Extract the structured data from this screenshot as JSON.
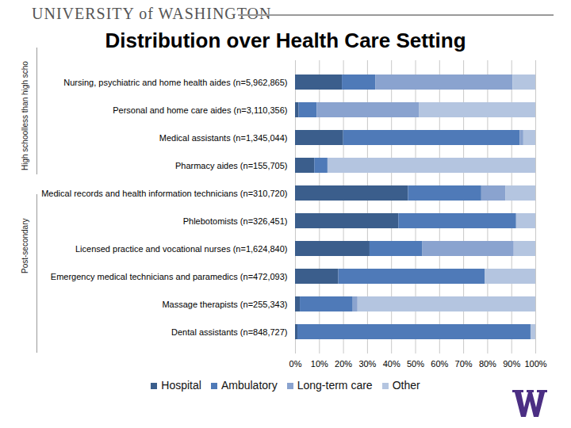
{
  "header": "UNIVERSITY of WASHINGTON",
  "group_labels": [
    "High schoolless than high scho",
    "Post-secondary"
  ],
  "chart_data": {
    "type": "bar",
    "title": "Distribution over Health Care Setting",
    "orientation": "horizontal",
    "stacked": true,
    "grid": true,
    "legend": "bottom",
    "categories": [
      "Nursing, psychiatric and home health aides (n=5,962,865)",
      "Personal and home care aides (n=3,110,356)",
      "Medical assistants (n=1,345,044)",
      "Pharmacy aides (n=155,705)",
      "Medical records and health information technicians (n=310,720)",
      "Phlebotomists (n=326,451)",
      "Licensed practice and vocational nurses (n=1,624,840)",
      "Emergency medical technicians and paramedics (n=472,093)",
      "Massage therapists (n=255,343)",
      "Dental assistants (n=848,727)"
    ],
    "series": [
      {
        "name": "Hospital",
        "color": "#3b5e8c",
        "values": [
          19.5,
          1.5,
          20,
          8,
          47,
          43,
          31,
          18,
          2,
          1
        ]
      },
      {
        "name": "Ambulatory",
        "color": "#4f7ab8",
        "values": [
          14,
          7.5,
          73.5,
          5.5,
          30.5,
          49,
          22,
          61,
          22,
          97
        ]
      },
      {
        "name": "Long-term care",
        "color": "#8aa3cf",
        "values": [
          57,
          42.5,
          1.5,
          0,
          10,
          0,
          38,
          0,
          2,
          0
        ]
      },
      {
        "name": "Other",
        "color": "#b4c5e0",
        "values": [
          9.5,
          48.5,
          5,
          86.5,
          12.5,
          8,
          9,
          21,
          74,
          2
        ]
      }
    ],
    "xlim": [
      0,
      100
    ],
    "xticks": [
      {
        "value": 0,
        "label": "0%"
      },
      {
        "value": 10,
        "label": "10%"
      },
      {
        "value": 20,
        "label": "20%"
      },
      {
        "value": 30,
        "label": "30%"
      },
      {
        "value": 40,
        "label": "40%"
      },
      {
        "value": 50,
        "label": "50%"
      },
      {
        "value": 60,
        "label": "60%"
      },
      {
        "value": 70,
        "label": "70%"
      },
      {
        "value": 80,
        "label": "80%"
      },
      {
        "value": 90,
        "label": "90%"
      },
      {
        "value": 100,
        "label": "100%"
      }
    ]
  }
}
